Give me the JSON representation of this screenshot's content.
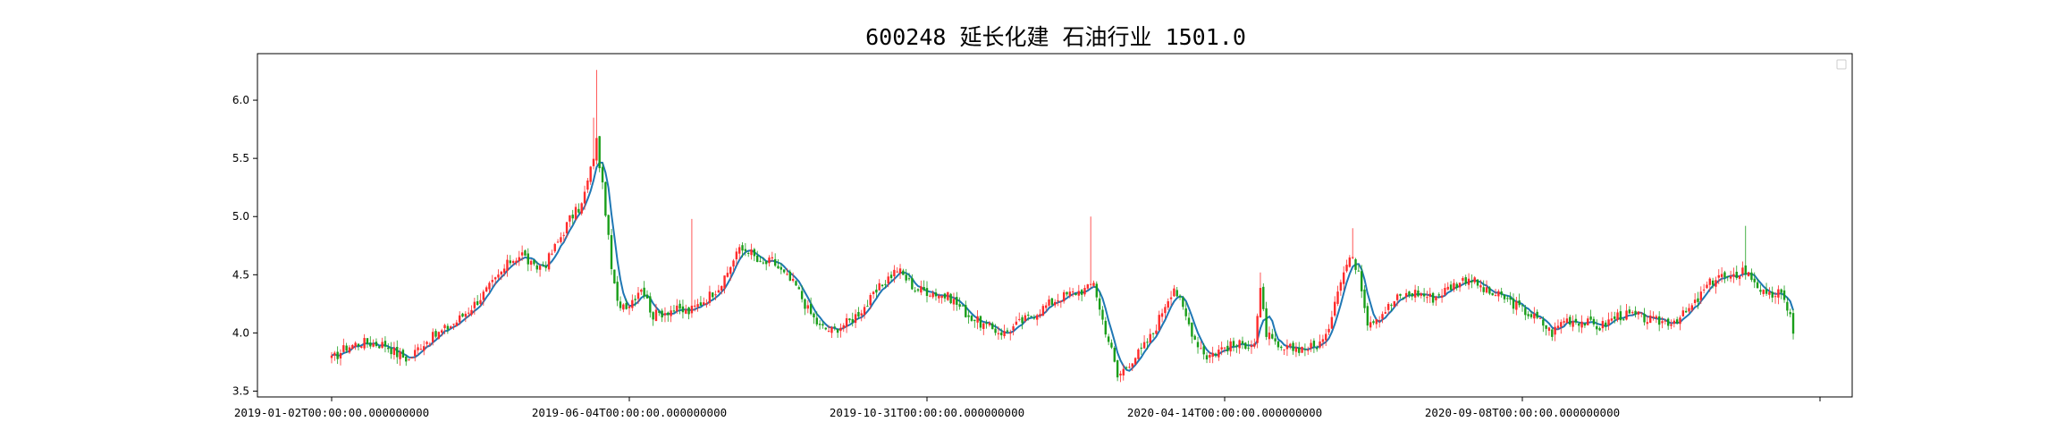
{
  "chart_data": {
    "type": "candlestick",
    "title": "600248 延长化建 石油行业 1501.0",
    "xlabel": "",
    "ylabel": "",
    "ylim": [
      3.45,
      6.4
    ],
    "yticks": [
      3.5,
      4.0,
      4.5,
      5.0,
      5.5,
      6.0
    ],
    "ytick_labels": [
      "3.5",
      "4.0",
      "4.5",
      "5.0",
      "5.5",
      "6.0"
    ],
    "xticks": [
      {
        "index": 0,
        "label": "2019-01-02T00:00:00.000000000"
      },
      {
        "index": 100,
        "label": "2019-06-04T00:00:00.000000000"
      },
      {
        "index": 200,
        "label": "2019-10-31T00:00:00.000000000"
      },
      {
        "index": 300,
        "label": "2020-04-14T00:00:00.000000000"
      },
      {
        "index": 400,
        "label": "2020-09-08T00:00:00.000000000"
      },
      {
        "index": 500,
        "label": ""
      }
    ],
    "grid": false,
    "legend": {
      "placement": "top-right",
      "entries": []
    },
    "colors": {
      "up": "#ff2b2b",
      "down": "#1a9e1a",
      "ma": "#1f77b4",
      "axis": "#000000"
    },
    "close_anchors": [
      [
        0,
        3.77
      ],
      [
        5,
        3.88
      ],
      [
        10,
        3.92
      ],
      [
        18,
        3.9
      ],
      [
        22,
        3.82
      ],
      [
        26,
        3.77
      ],
      [
        30,
        3.9
      ],
      [
        35,
        3.98
      ],
      [
        42,
        4.1
      ],
      [
        48,
        4.25
      ],
      [
        55,
        4.45
      ],
      [
        60,
        4.62
      ],
      [
        64,
        4.68
      ],
      [
        68,
        4.55
      ],
      [
        72,
        4.6
      ],
      [
        76,
        4.78
      ],
      [
        80,
        4.98
      ],
      [
        84,
        5.1
      ],
      [
        87,
        5.4
      ],
      [
        89,
        5.65
      ],
      [
        90,
        5.45
      ],
      [
        92,
        5.05
      ],
      [
        94,
        4.55
      ],
      [
        96,
        4.25
      ],
      [
        100,
        4.25
      ],
      [
        104,
        4.4
      ],
      [
        108,
        4.15
      ],
      [
        114,
        4.2
      ],
      [
        120,
        4.18
      ],
      [
        126,
        4.3
      ],
      [
        132,
        4.45
      ],
      [
        136,
        4.7
      ],
      [
        140,
        4.72
      ],
      [
        144,
        4.58
      ],
      [
        148,
        4.62
      ],
      [
        152,
        4.5
      ],
      [
        156,
        4.4
      ],
      [
        160,
        4.2
      ],
      [
        164,
        4.05
      ],
      [
        168,
        4.02
      ],
      [
        174,
        4.1
      ],
      [
        180,
        4.25
      ],
      [
        186,
        4.45
      ],
      [
        190,
        4.55
      ],
      [
        196,
        4.38
      ],
      [
        202,
        4.35
      ],
      [
        208,
        4.3
      ],
      [
        214,
        4.15
      ],
      [
        220,
        4.05
      ],
      [
        226,
        4.0
      ],
      [
        232,
        4.1
      ],
      [
        238,
        4.2
      ],
      [
        244,
        4.3
      ],
      [
        250,
        4.35
      ],
      [
        254,
        4.38
      ],
      [
        256,
        4.45
      ],
      [
        258,
        4.2
      ],
      [
        262,
        3.85
      ],
      [
        264,
        3.62
      ],
      [
        268,
        3.75
      ],
      [
        272,
        3.85
      ],
      [
        276,
        4.0
      ],
      [
        280,
        4.25
      ],
      [
        283,
        4.4
      ],
      [
        286,
        4.2
      ],
      [
        290,
        3.95
      ],
      [
        294,
        3.8
      ],
      [
        300,
        3.88
      ],
      [
        306,
        3.9
      ],
      [
        310,
        3.92
      ],
      [
        312,
        4.35
      ],
      [
        314,
        4.0
      ],
      [
        318,
        3.85
      ],
      [
        324,
        3.87
      ],
      [
        330,
        3.88
      ],
      [
        334,
        3.95
      ],
      [
        338,
        4.4
      ],
      [
        342,
        4.65
      ],
      [
        345,
        4.55
      ],
      [
        348,
        4.1
      ],
      [
        352,
        4.15
      ],
      [
        358,
        4.3
      ],
      [
        364,
        4.35
      ],
      [
        370,
        4.3
      ],
      [
        376,
        4.4
      ],
      [
        382,
        4.48
      ],
      [
        388,
        4.35
      ],
      [
        394,
        4.3
      ],
      [
        400,
        4.2
      ],
      [
        406,
        4.1
      ],
      [
        410,
        4.0
      ],
      [
        414,
        4.12
      ],
      [
        420,
        4.1
      ],
      [
        426,
        4.05
      ],
      [
        432,
        4.15
      ],
      [
        438,
        4.15
      ],
      [
        444,
        4.1
      ],
      [
        450,
        4.1
      ],
      [
        454,
        4.15
      ],
      [
        458,
        4.25
      ],
      [
        462,
        4.4
      ],
      [
        466,
        4.5
      ],
      [
        470,
        4.45
      ],
      [
        474,
        4.55
      ],
      [
        478,
        4.45
      ],
      [
        482,
        4.3
      ],
      [
        486,
        4.35
      ],
      [
        490,
        4.18
      ],
      [
        491,
        3.98
      ]
    ],
    "spikes": [
      {
        "index": 89,
        "high": 6.26
      },
      {
        "index": 88,
        "high": 5.85
      },
      {
        "index": 121,
        "high": 4.98
      },
      {
        "index": 255,
        "high": 5.0
      },
      {
        "index": 312,
        "high": 4.52
      },
      {
        "index": 343,
        "high": 4.9
      },
      {
        "index": 475,
        "high": 4.92
      }
    ]
  }
}
